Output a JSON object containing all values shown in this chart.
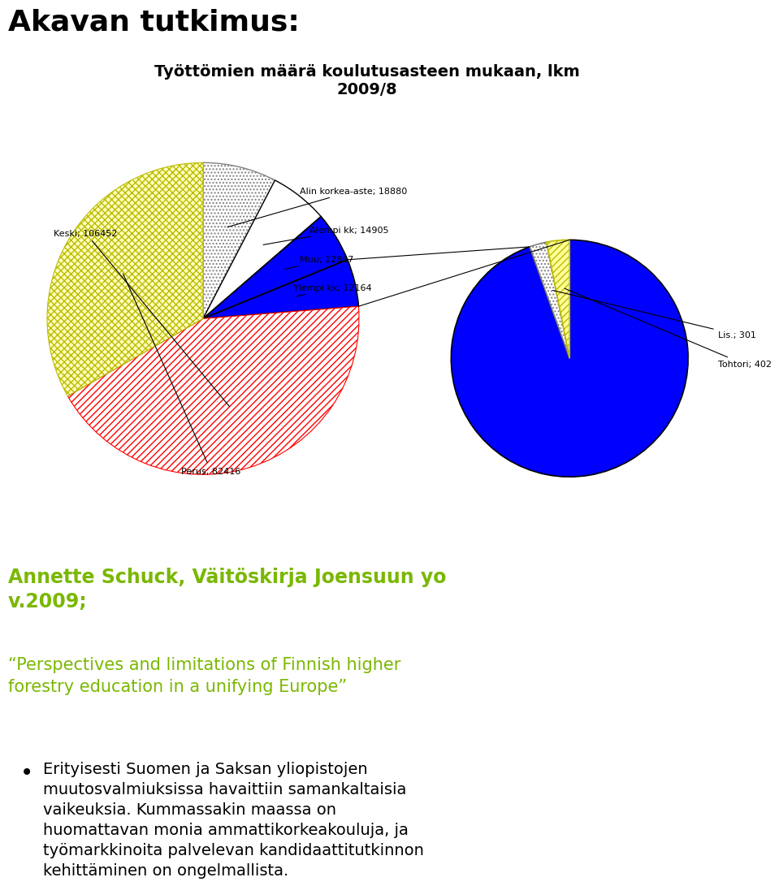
{
  "title_main": "Akavan tutkimus:",
  "chart_title": "Työttömien määrä koulutusasteen mukaan, lkm\n2009/8",
  "pie1_labels": [
    "Keski; 106452",
    "Alin korkea-aste; 18880",
    "Alempi kk; 14905",
    "Muu; 12867",
    "Ylempi kk; 12164",
    "Perus; 82416"
  ],
  "pie1_values": [
    106452,
    18880,
    14905,
    12867,
    12164,
    82416
  ],
  "pie2_labels": [
    "Ylempi kk; 12164",
    "Lis.; 301",
    "Tohtori; 402"
  ],
  "pie2_values": [
    12164,
    301,
    402
  ],
  "green_title1": "Annette Schuck, Väitöskirja Joensuun yo\nv.2009;",
  "green_title2": "“Perspectives and limitations of Finnish higher\nforestry education in a unifying Europe”",
  "bullet_text": "Erityisesti Suomen ja Saksan yliopistojen\nmuutosvalmiuksissa havaittiin samankaltaisia\nvaikeuksia. Kummassakin maassa on\nhuomattavan monia ammattikorkeakouluja, ja\ntyömarkkinoita palvelevan kandidaattitutkinnon\nkehittäminen on ongelmallista.",
  "green_color": "#7AB800",
  "background_color": "#ffffff"
}
